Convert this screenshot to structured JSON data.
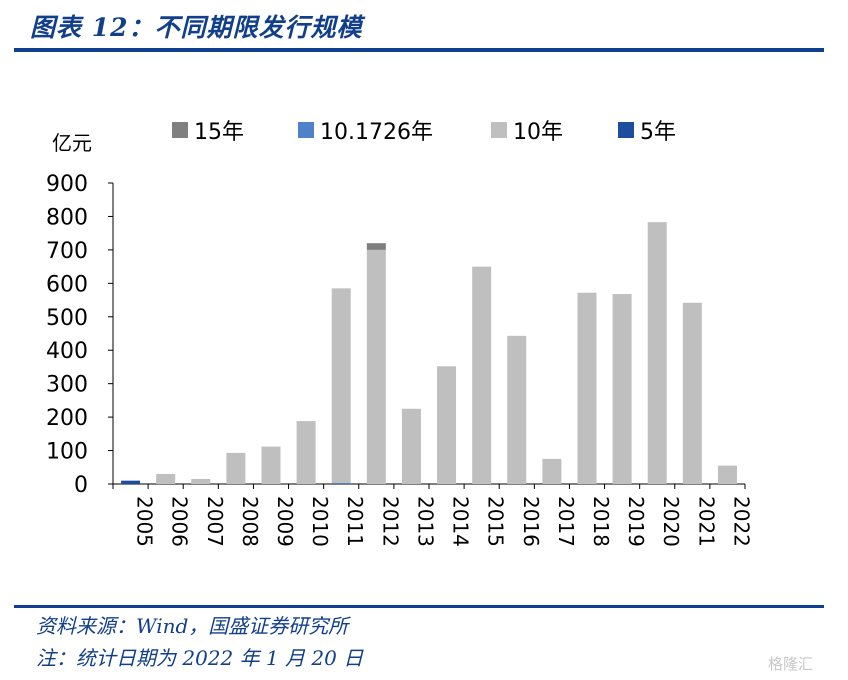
{
  "title": "图表 12：不同期限发行规模",
  "source": "资料来源：Wind，国盛证券研究所",
  "note": "注：统计日期为 2022 年 1 月 20 日",
  "watermark": "格隆汇",
  "chart_data": {
    "type": "bar",
    "stacked": true,
    "ylabel": "亿元",
    "ylim": [
      0,
      900
    ],
    "yticks": [
      0,
      100,
      200,
      300,
      400,
      500,
      600,
      700,
      800,
      900
    ],
    "categories": [
      "2005",
      "2006",
      "2007",
      "2008",
      "2009",
      "2010",
      "2011",
      "2012",
      "2013",
      "2014",
      "2015",
      "2016",
      "2017",
      "2018",
      "2019",
      "2020",
      "2021",
      "2022"
    ],
    "legend_position": "top",
    "series": [
      {
        "name": "15年",
        "color": "#7f7f7f",
        "values": [
          0,
          0,
          0,
          0,
          0,
          0,
          0,
          20,
          0,
          0,
          0,
          0,
          0,
          0,
          0,
          0,
          0,
          0
        ]
      },
      {
        "name": "10.1726年",
        "color": "#4f81c8",
        "values": [
          0,
          0,
          0,
          0,
          0,
          0,
          3,
          0,
          0,
          0,
          0,
          0,
          0,
          0,
          0,
          0,
          0,
          0
        ]
      },
      {
        "name": "10年",
        "color": "#bfbfbf",
        "values": [
          0,
          30,
          15,
          93,
          112,
          188,
          582,
          700,
          225,
          352,
          650,
          443,
          75,
          572,
          568,
          783,
          542,
          55
        ]
      },
      {
        "name": "5年",
        "color": "#1d4e9e",
        "values": [
          10,
          0,
          0,
          0,
          0,
          0,
          0,
          0,
          0,
          0,
          0,
          0,
          0,
          0,
          0,
          0,
          0,
          0
        ]
      }
    ]
  }
}
